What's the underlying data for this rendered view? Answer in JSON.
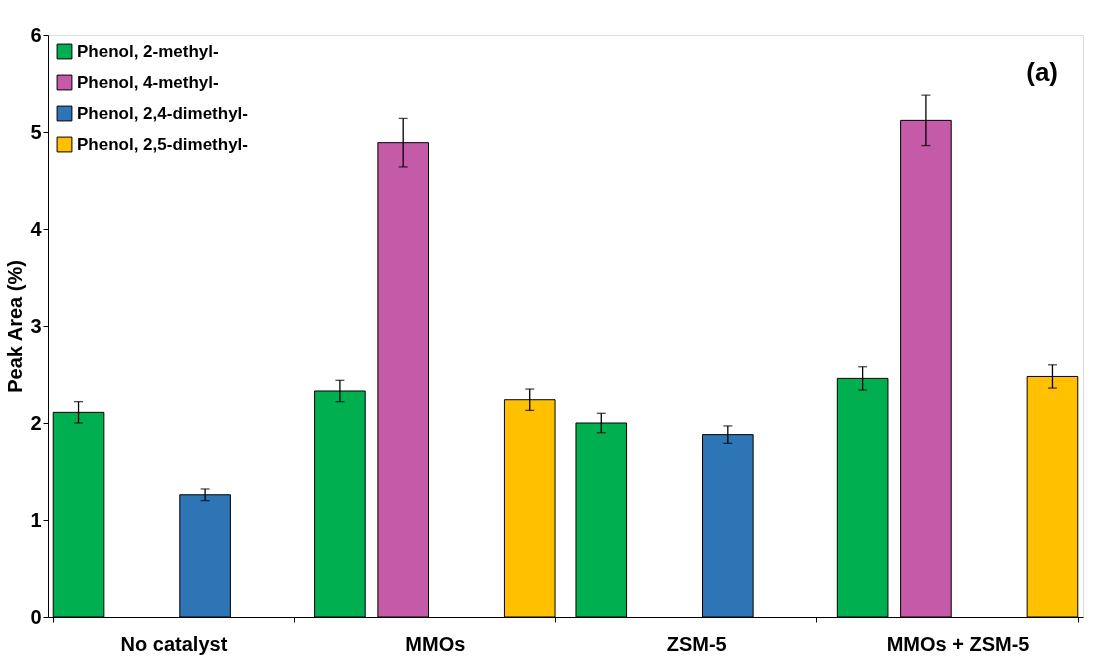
{
  "chart_data": {
    "type": "bar",
    "ylabel": "Peak Area (%)",
    "categories": [
      "No catalyst",
      "MMOs",
      "ZSM-5",
      "MMOs + ZSM-5"
    ],
    "series": [
      {
        "name": "Phenol, 2-methyl-",
        "color": "#00b050",
        "values": [
          2.11,
          2.33,
          2.0,
          2.46
        ],
        "errors": [
          0.11,
          0.11,
          0.1,
          0.12
        ]
      },
      {
        "name": "Phenol, 4-methyl-",
        "color": "#c55aa8",
        "values": [
          null,
          4.89,
          null,
          5.12
        ],
        "errors": [
          null,
          0.25,
          null,
          0.26
        ]
      },
      {
        "name": "Phenol, 2,4-dimethyl-",
        "color": "#2e75b6",
        "values": [
          1.26,
          null,
          1.88,
          null
        ],
        "errors": [
          0.06,
          null,
          0.09,
          null
        ]
      },
      {
        "name": "Phenol, 2,5-dimethyl-",
        "color": "#ffc000",
        "values": [
          null,
          2.24,
          null,
          2.48
        ],
        "errors": [
          null,
          0.11,
          null,
          0.12
        ]
      }
    ],
    "ylim": [
      0,
      6
    ],
    "yticks": [
      0,
      1,
      2,
      3,
      4,
      5,
      6
    ],
    "grid": false,
    "legend": "top left",
    "annotations": [
      "(a)"
    ]
  }
}
